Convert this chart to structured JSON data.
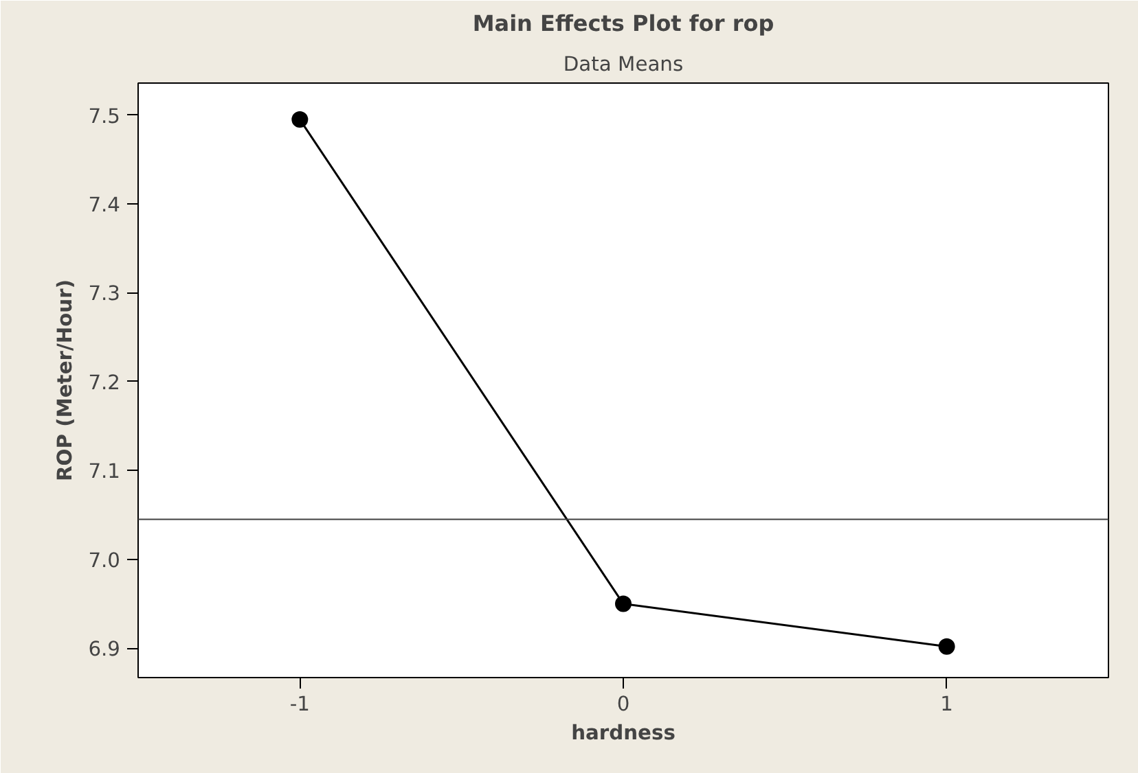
{
  "chart_data": {
    "type": "line",
    "title": "Main Effects Plot for rop",
    "subtitle": "Data Means",
    "xlabel": "hardness",
    "ylabel": "ROP (Meter/Hour)",
    "x": [
      -1,
      0,
      1
    ],
    "series": [
      {
        "color": "#000000",
        "values": [
          7.495,
          6.95,
          6.902
        ]
      }
    ],
    "xlim": [
      -1.5,
      1.5
    ],
    "xticks": [
      -1,
      0,
      1
    ],
    "ylim": [
      6.867,
      7.536
    ],
    "yticks": [
      6.9,
      {
        "value": 7.0,
        "label": "7.0"
      },
      7.1,
      7.2,
      7.3,
      7.4,
      7.5
    ],
    "ref_lines": [
      {
        "axis": "y",
        "value": 7.045,
        "color": "#404040"
      }
    ],
    "marker": "circle",
    "line_style": "solid",
    "grid": false
  }
}
